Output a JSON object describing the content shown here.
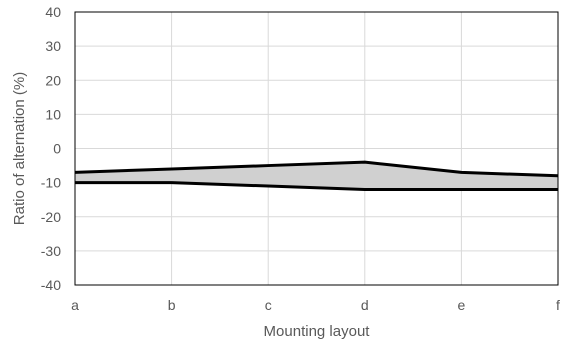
{
  "chart_data": {
    "type": "area",
    "xlabel": "Mounting layout",
    "ylabel": "Ratio of alternation (%)",
    "categories": [
      "a",
      "b",
      "c",
      "d",
      "e",
      "f"
    ],
    "ylim": [
      -40,
      40
    ],
    "y_ticks": [
      40,
      30,
      20,
      10,
      0,
      -10,
      -20,
      -30,
      -40
    ],
    "grid": true,
    "legend": "none",
    "series": [
      {
        "values": [
          -7,
          -6,
          -5,
          -4,
          -7,
          -8
        ]
      },
      {
        "values": [
          -10,
          -10,
          -11,
          -12,
          -12,
          -12
        ]
      }
    ],
    "fill_between": true,
    "colors": {
      "line": "#000000",
      "fill": "#d0d0d0",
      "grid": "#d9d9d9",
      "text": "#595959"
    }
  }
}
